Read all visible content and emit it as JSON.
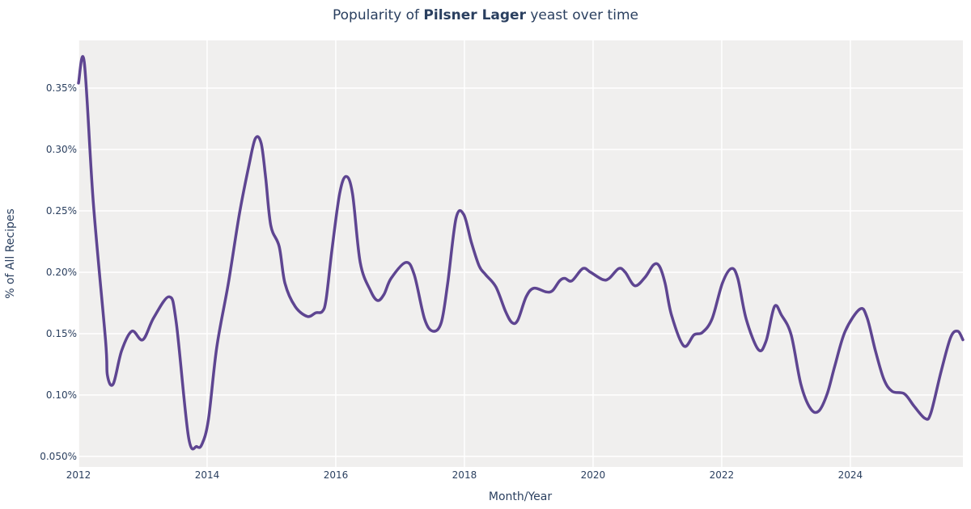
{
  "chart_data": {
    "type": "line",
    "title": {
      "prefix": "Popularity of ",
      "bold": "Pilsner Lager",
      "suffix": " yeast over time"
    },
    "xlabel": "Month/Year",
    "ylabel": "% of All Recipes",
    "xlim": [
      2012,
      2025.75
    ],
    "ylim": [
      0.0414,
      0.3888
    ],
    "xticks": [
      2012,
      2014,
      2016,
      2018,
      2020,
      2022,
      2024
    ],
    "xtick_labels": [
      "2012",
      "2014",
      "2016",
      "2018",
      "2020",
      "2022",
      "2024"
    ],
    "yticks": [
      0.05,
      0.1,
      0.15,
      0.2,
      0.25,
      0.3,
      0.35
    ],
    "ytick_labels": [
      "0.050%",
      "0.10%",
      "0.15%",
      "0.20%",
      "0.25%",
      "0.30%",
      "0.35%"
    ],
    "grid": true,
    "colors": {
      "line": "#5e4591",
      "plot_bg": "#f0efee",
      "grid": "#ffffff"
    },
    "series": [
      {
        "x": [
          2012.0,
          2012.09,
          2012.23,
          2012.42,
          2012.45,
          2012.54,
          2012.67,
          2012.83,
          2013.0,
          2013.17,
          2013.41,
          2013.52,
          2013.71,
          2013.84,
          2013.92,
          2014.02,
          2014.15,
          2014.33,
          2014.5,
          2014.65,
          2014.75,
          2014.84,
          2014.91,
          2014.99,
          2015.12,
          2015.21,
          2015.37,
          2015.56,
          2015.69,
          2015.79,
          2015.85,
          2015.94,
          2016.06,
          2016.16,
          2016.26,
          2016.38,
          2016.54,
          2016.65,
          2016.75,
          2016.86,
          2017.09,
          2017.22,
          2017.38,
          2017.51,
          2017.64,
          2017.74,
          2017.87,
          2017.99,
          2018.11,
          2018.23,
          2018.33,
          2018.49,
          2018.64,
          2018.74,
          2018.83,
          2018.96,
          2019.08,
          2019.27,
          2019.37,
          2019.48,
          2019.56,
          2019.67,
          2019.84,
          2019.96,
          2020.15,
          2020.25,
          2020.4,
          2020.5,
          2020.65,
          2020.81,
          2020.94,
          2021.03,
          2021.12,
          2021.22,
          2021.41,
          2021.57,
          2021.7,
          2021.85,
          2022.01,
          2022.15,
          2022.25,
          2022.38,
          2022.57,
          2022.69,
          2022.82,
          2022.93,
          2023.08,
          2023.23,
          2023.38,
          2023.51,
          2023.64,
          2023.76,
          2023.92,
          2024.15,
          2024.26,
          2024.39,
          2024.52,
          2024.65,
          2024.84,
          2024.99,
          2025.16,
          2025.25,
          2025.41,
          2025.56,
          2025.67,
          2025.75
        ],
        "y": [
          0.354,
          0.371,
          0.257,
          0.145,
          0.116,
          0.109,
          0.136,
          0.152,
          0.145,
          0.163,
          0.18,
          0.159,
          0.066,
          0.058,
          0.06,
          0.08,
          0.139,
          0.191,
          0.247,
          0.287,
          0.309,
          0.305,
          0.277,
          0.238,
          0.221,
          0.191,
          0.172,
          0.164,
          0.167,
          0.168,
          0.178,
          0.218,
          0.264,
          0.278,
          0.264,
          0.208,
          0.185,
          0.177,
          0.182,
          0.195,
          0.208,
          0.198,
          0.162,
          0.152,
          0.159,
          0.191,
          0.244,
          0.247,
          0.224,
          0.205,
          0.198,
          0.188,
          0.168,
          0.159,
          0.161,
          0.18,
          0.187,
          0.184,
          0.185,
          0.193,
          0.195,
          0.193,
          0.203,
          0.2,
          0.194,
          0.195,
          0.203,
          0.2,
          0.189,
          0.196,
          0.206,
          0.205,
          0.191,
          0.165,
          0.14,
          0.149,
          0.151,
          0.162,
          0.191,
          0.203,
          0.195,
          0.162,
          0.137,
          0.144,
          0.172,
          0.165,
          0.149,
          0.109,
          0.089,
          0.087,
          0.101,
          0.124,
          0.152,
          0.17,
          0.163,
          0.136,
          0.113,
          0.103,
          0.101,
          0.091,
          0.081,
          0.085,
          0.119,
          0.147,
          0.152,
          0.145
        ]
      }
    ]
  }
}
